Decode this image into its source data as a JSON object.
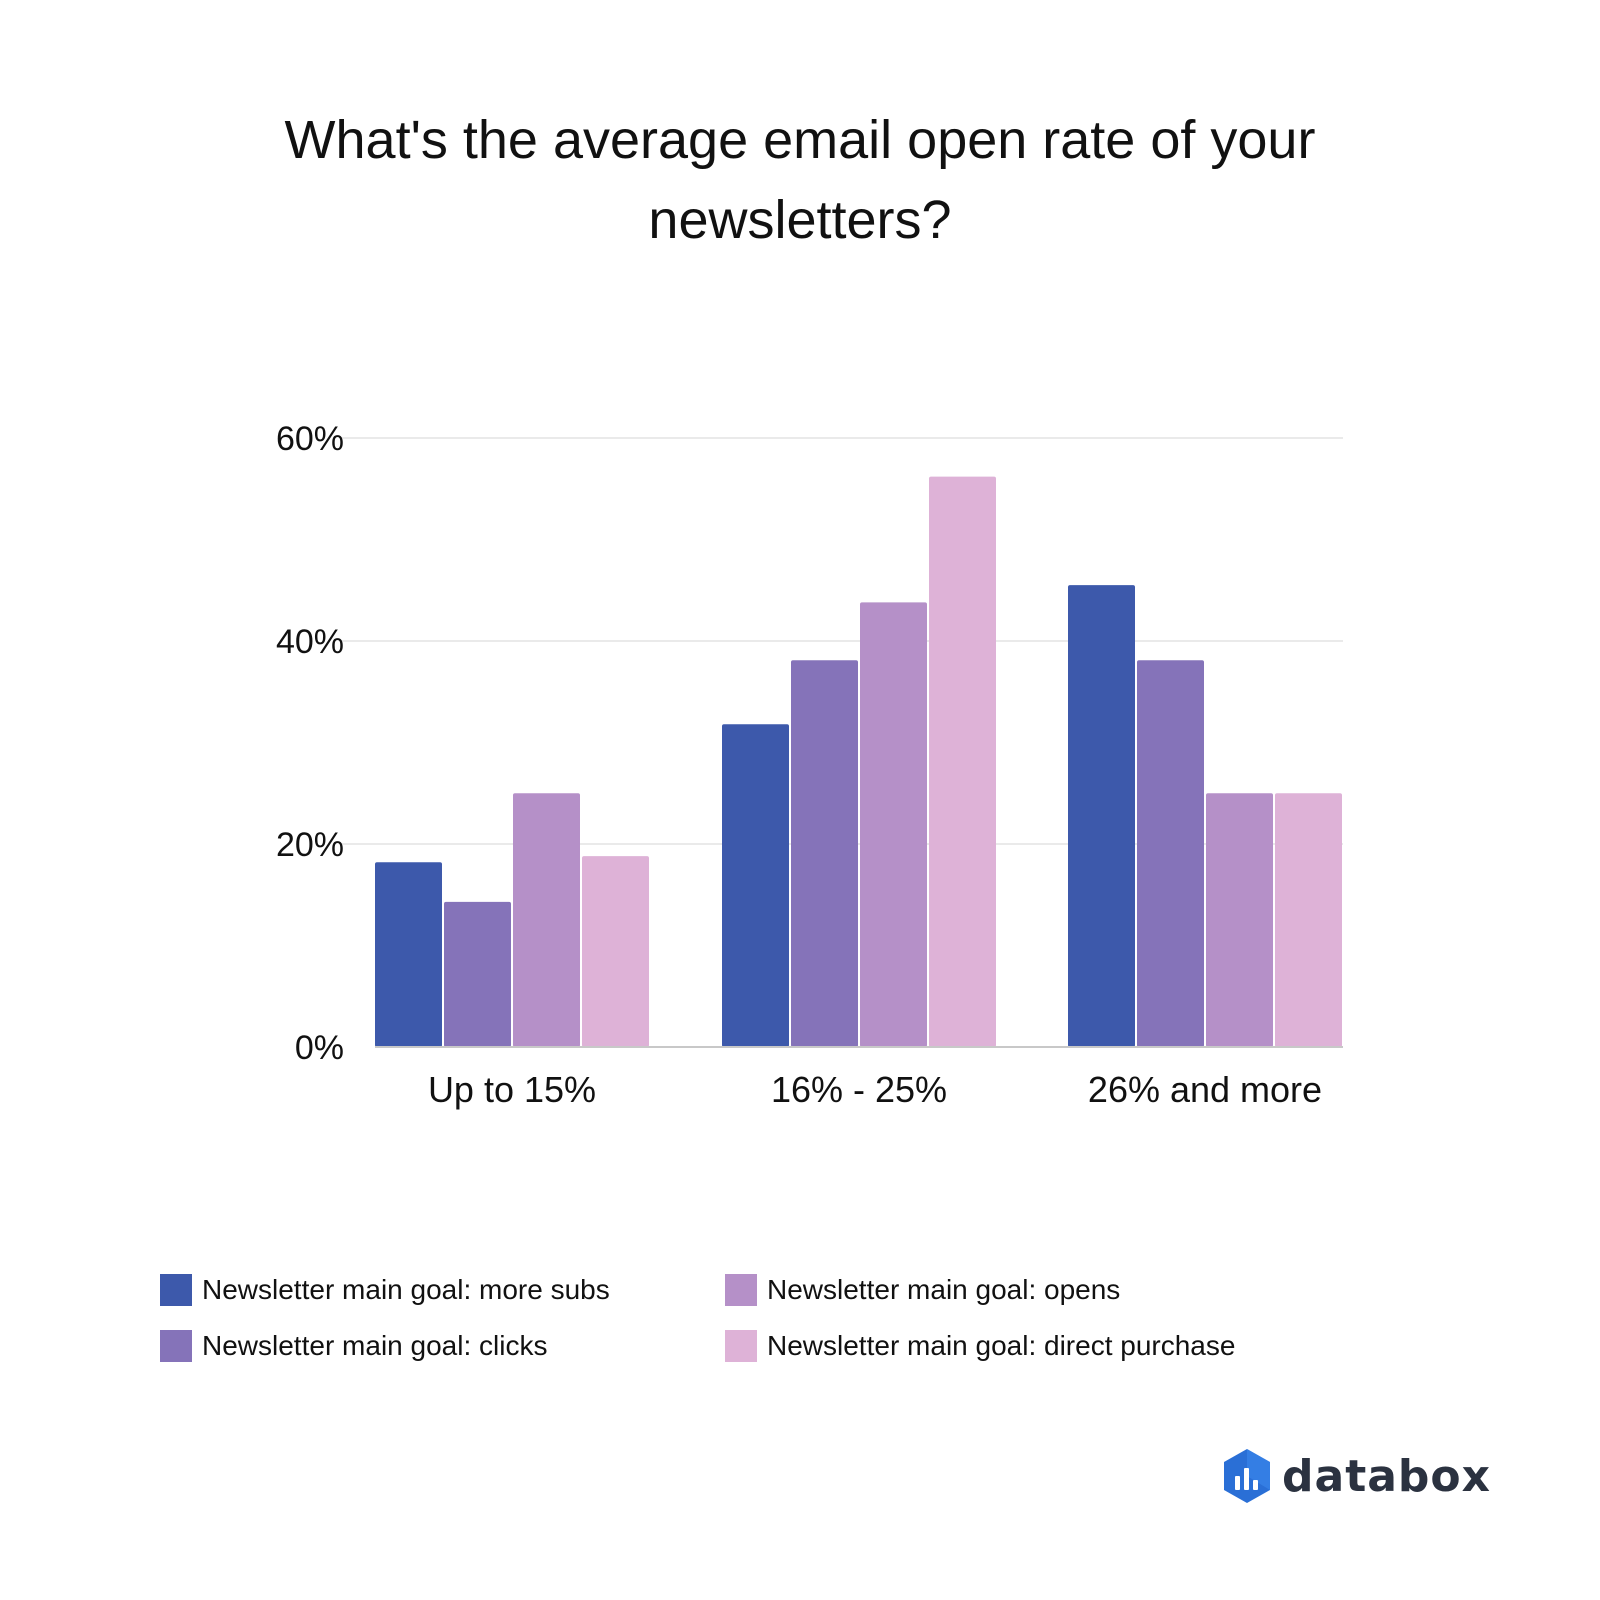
{
  "chart_data": {
    "type": "bar",
    "title": "What's the average email open rate of your newsletters?",
    "categories": [
      "Up to 15%",
      "16% - 25%",
      "26% and more"
    ],
    "series": [
      {
        "name": "Newsletter main goal: more subs",
        "color": "#3d59ab",
        "values": [
          18.2,
          31.8,
          45.5
        ]
      },
      {
        "name": "Newsletter main goal: clicks",
        "color": "#8573b9",
        "values": [
          14.3,
          38.1,
          38.1
        ]
      },
      {
        "name": "Newsletter main goal: opens",
        "color": "#b590c8",
        "values": [
          25.0,
          43.8,
          25.0
        ]
      },
      {
        "name": "Newsletter main goal: direct purchase",
        "color": "#deb2d7",
        "values": [
          18.8,
          56.2,
          25.0
        ]
      }
    ],
    "yticks": [
      "0%",
      "20%",
      "40%",
      "60%"
    ],
    "ytick_values": [
      0,
      20,
      40,
      60
    ],
    "ylim": [
      0,
      60
    ],
    "grid": true,
    "legend_position": "bottom"
  },
  "logo": {
    "text": "databox",
    "color": "#2b3240",
    "mark_color": "#2a6fd6"
  }
}
